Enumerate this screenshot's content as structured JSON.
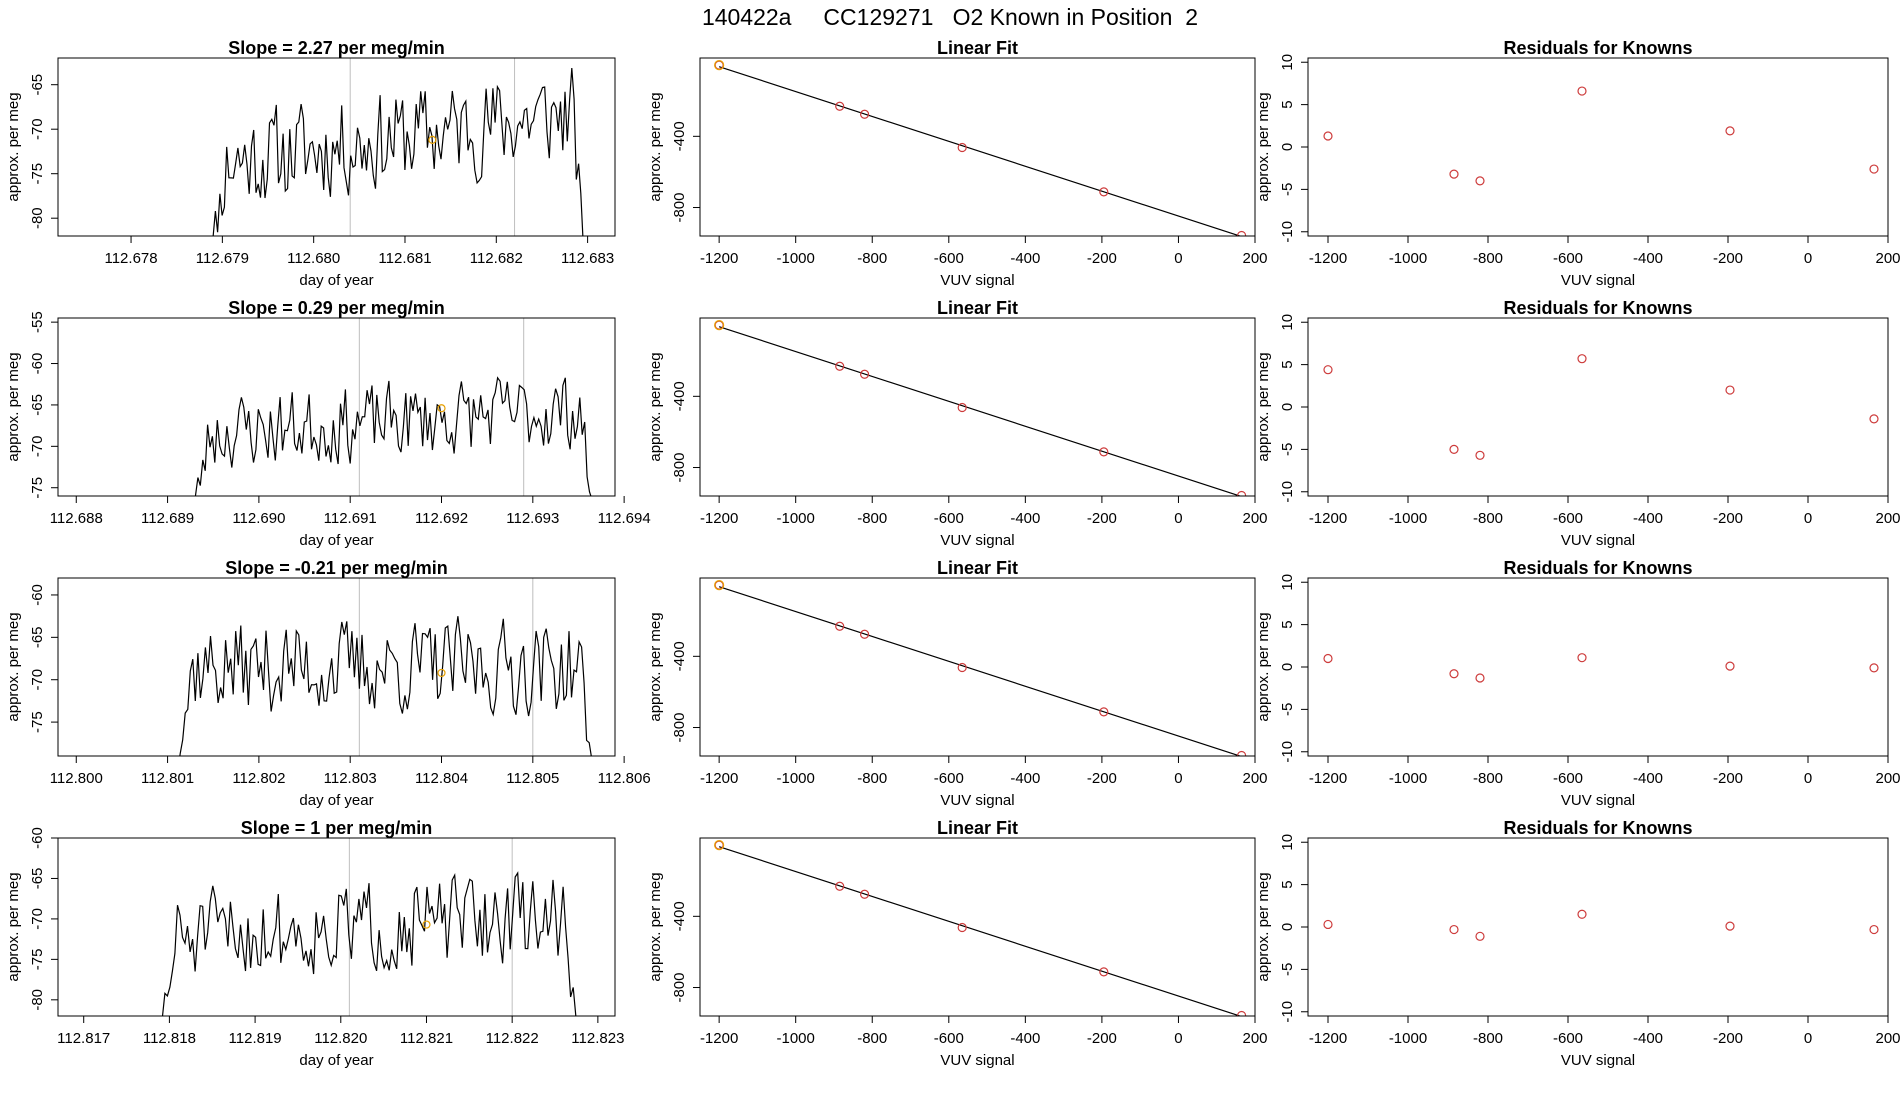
{
  "page": {
    "title": "140422a     CC129271   O2 Known in Position  2"
  },
  "colors": {
    "trace": "#000000",
    "knowns": "#cd3b3b",
    "highlight": "#e69f00",
    "vline": "#bebebe",
    "axis": "#000000"
  },
  "chart_data": [
    {
      "type": "line",
      "row": 1,
      "col": 1,
      "title": "Slope =  2.27  per meg/min",
      "xlabel": "day of year",
      "ylabel": "approx. per meg",
      "xlim": [
        112.6772,
        112.6833
      ],
      "ylim": [
        -82,
        -62
      ],
      "xticks": [
        "112.678",
        "112.679",
        "112.680",
        "112.681",
        "112.682",
        "112.683"
      ],
      "yticks": [
        -80,
        -75,
        -70,
        -65
      ],
      "vlines": [
        112.6804,
        112.6822
      ],
      "marker": {
        "x": 112.6813,
        "y": -71.2
      },
      "series": [
        {
          "x_start": 112.6788,
          "x_end": 112.683,
          "seed": 11,
          "base": -71,
          "trend": 2.0,
          "amp": 6
        }
      ]
    },
    {
      "type": "scatter",
      "row": 1,
      "col": 2,
      "title": "Linear Fit",
      "xlabel": "VUV signal",
      "ylabel": "approx. per meg",
      "xlim": [
        -1250,
        200
      ],
      "ylim": [
        -960,
        40
      ],
      "xticks": [
        -1200,
        -1000,
        -800,
        -600,
        -400,
        -200,
        0,
        200
      ],
      "yticks": [
        -400,
        -800
      ],
      "x": [
        -1200,
        -885,
        -820,
        -565,
        -195,
        165
      ],
      "y": [
        0,
        -231,
        -276,
        -463,
        -712,
        -957
      ],
      "highlight_index": 0
    },
    {
      "type": "scatter",
      "row": 1,
      "col": 3,
      "title": "Residuals for Knowns",
      "xlabel": "VUV signal",
      "ylabel": "approx. per meg",
      "xlim": [
        -1250,
        200
      ],
      "ylim": [
        -10.5,
        10.5
      ],
      "xticks": [
        -1200,
        -1000,
        -800,
        -600,
        -400,
        -200,
        0,
        200
      ],
      "yticks": [
        -10,
        -5,
        0,
        5,
        10
      ],
      "x": [
        -1200,
        -885,
        -820,
        -565,
        -195,
        165
      ],
      "y": [
        1.3,
        -3.2,
        -4.0,
        6.6,
        1.9,
        -2.6
      ]
    },
    {
      "type": "line",
      "row": 2,
      "col": 1,
      "title": "Slope =  0.29  per meg/min",
      "xlabel": "day of year",
      "ylabel": "approx. per meg",
      "xlim": [
        112.6878,
        112.6939
      ],
      "ylim": [
        -76,
        -54.5
      ],
      "xticks": [
        "112.688",
        "112.689",
        "112.690",
        "112.691",
        "112.692",
        "112.693",
        "112.694"
      ],
      "yticks": [
        -75,
        -70,
        -65,
        -60,
        -55
      ],
      "vlines": [
        112.6911,
        112.6929
      ],
      "marker": {
        "x": 112.692,
        "y": -65.4
      },
      "series": [
        {
          "x_start": 112.6892,
          "x_end": 112.6937,
          "seed": 23,
          "base": -67,
          "trend": 1.0,
          "amp": 5
        }
      ]
    },
    {
      "type": "scatter",
      "row": 2,
      "col": 2,
      "title": "Linear Fit",
      "xlabel": "VUV signal",
      "ylabel": "approx. per meg",
      "xlim": [
        -1250,
        200
      ],
      "ylim": [
        -960,
        40
      ],
      "xticks": [
        -1200,
        -1000,
        -800,
        -600,
        -400,
        -200,
        0,
        200
      ],
      "yticks": [
        -400,
        -800
      ],
      "x": [
        -1200,
        -885,
        -820,
        -565,
        -195,
        165
      ],
      "y": [
        0,
        -231,
        -276,
        -463,
        -712,
        -957
      ],
      "highlight_index": 0
    },
    {
      "type": "scatter",
      "row": 2,
      "col": 3,
      "title": "Residuals for Knowns",
      "xlabel": "VUV signal",
      "ylabel": "approx. per meg",
      "xlim": [
        -1250,
        200
      ],
      "ylim": [
        -10.5,
        10.5
      ],
      "xticks": [
        -1200,
        -1000,
        -800,
        -600,
        -400,
        -200,
        0,
        200
      ],
      "yticks": [
        -10,
        -5,
        0,
        5,
        10
      ],
      "x": [
        -1200,
        -885,
        -820,
        -565,
        -195,
        165
      ],
      "y": [
        4.4,
        -5.0,
        -5.7,
        5.7,
        2.0,
        -1.4
      ]
    },
    {
      "type": "line",
      "row": 3,
      "col": 1,
      "title": "Slope =  -0.21  per meg/min",
      "xlabel": "day of year",
      "ylabel": "approx. per meg",
      "xlim": [
        112.7998,
        112.8059
      ],
      "ylim": [
        -79,
        -58
      ],
      "xticks": [
        "112.800",
        "112.801",
        "112.802",
        "112.803",
        "112.804",
        "112.805",
        "112.806"
      ],
      "yticks": [
        -75,
        -70,
        -65,
        -60
      ],
      "vlines": [
        112.8031,
        112.805
      ],
      "marker": {
        "x": 112.804,
        "y": -69.2
      },
      "series": [
        {
          "x_start": 112.801,
          "x_end": 112.8057,
          "seed": 37,
          "base": -68.5,
          "trend": 0.0,
          "amp": 6
        }
      ]
    },
    {
      "type": "scatter",
      "row": 3,
      "col": 2,
      "title": "Linear Fit",
      "xlabel": "VUV signal",
      "ylabel": "approx. per meg",
      "xlim": [
        -1250,
        200
      ],
      "ylim": [
        -960,
        40
      ],
      "xticks": [
        -1200,
        -1000,
        -800,
        -600,
        -400,
        -200,
        0,
        200
      ],
      "yticks": [
        -400,
        -800
      ],
      "x": [
        -1200,
        -885,
        -820,
        -565,
        -195,
        165
      ],
      "y": [
        0,
        -231,
        -276,
        -463,
        -712,
        -957
      ],
      "highlight_index": 0
    },
    {
      "type": "scatter",
      "row": 3,
      "col": 3,
      "title": "Residuals for Knowns",
      "xlabel": "VUV signal",
      "ylabel": "approx. per meg",
      "xlim": [
        -1250,
        200
      ],
      "ylim": [
        -10.5,
        10.5
      ],
      "xticks": [
        -1200,
        -1000,
        -800,
        -600,
        -400,
        -200,
        0,
        200
      ],
      "yticks": [
        -10,
        -5,
        0,
        5,
        10
      ],
      "x": [
        -1200,
        -885,
        -820,
        -565,
        -195,
        165
      ],
      "y": [
        1.0,
        -0.8,
        -1.3,
        1.1,
        0.1,
        -0.1
      ]
    },
    {
      "type": "line",
      "row": 4,
      "col": 1,
      "title": "Slope =  1  per meg/min",
      "xlabel": "day of year",
      "ylabel": "approx. per meg",
      "xlim": [
        112.8167,
        112.8232
      ],
      "ylim": [
        -82,
        -60
      ],
      "xticks": [
        "112.817",
        "112.818",
        "112.819",
        "112.820",
        "112.821",
        "112.822",
        "112.823"
      ],
      "yticks": [
        -80,
        -75,
        -70,
        -65,
        -60
      ],
      "vlines": [
        112.8201,
        112.822
      ],
      "marker": {
        "x": 112.821,
        "y": -70.7
      },
      "series": [
        {
          "x_start": 112.8178,
          "x_end": 112.8228,
          "seed": 51,
          "base": -71,
          "trend": 1.0,
          "amp": 6
        }
      ]
    },
    {
      "type": "scatter",
      "row": 4,
      "col": 2,
      "title": "Linear Fit",
      "xlabel": "VUV signal",
      "ylabel": "approx. per meg",
      "xlim": [
        -1250,
        200
      ],
      "ylim": [
        -960,
        40
      ],
      "xticks": [
        -1200,
        -1000,
        -800,
        -600,
        -400,
        -200,
        0,
        200
      ],
      "yticks": [
        -400,
        -800
      ],
      "x": [
        -1200,
        -885,
        -820,
        -565,
        -195,
        165
      ],
      "y": [
        0,
        -231,
        -276,
        -463,
        -712,
        -957
      ],
      "highlight_index": 0
    },
    {
      "type": "scatter",
      "row": 4,
      "col": 3,
      "title": "Residuals for Knowns",
      "xlabel": "VUV signal",
      "ylabel": "approx. per meg",
      "xlim": [
        -1250,
        200
      ],
      "ylim": [
        -10.5,
        10.5
      ],
      "xticks": [
        -1200,
        -1000,
        -800,
        -600,
        -400,
        -200,
        0,
        200
      ],
      "yticks": [
        -10,
        -5,
        0,
        5,
        10
      ],
      "x": [
        -1200,
        -885,
        -820,
        -565,
        -195,
        165
      ],
      "y": [
        0.3,
        -0.3,
        -1.1,
        1.5,
        0.1,
        -0.3
      ]
    }
  ]
}
